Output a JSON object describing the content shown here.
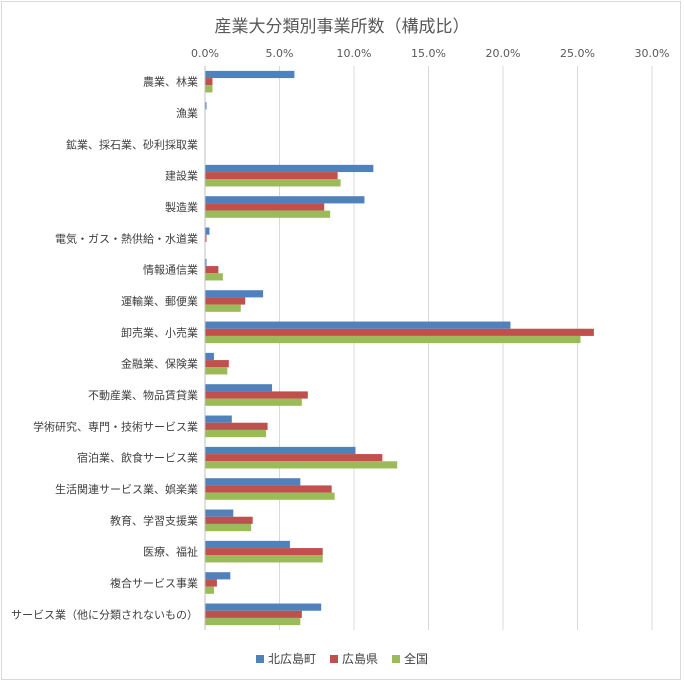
{
  "chart_data": {
    "type": "bar",
    "orientation": "horizontal",
    "title": "産業大分類別事業所数（構成比）",
    "categories": [
      "農業、林業",
      "漁業",
      "鉱業、採石業、砂利採取業",
      "建設業",
      "製造業",
      "電気・ガス・熱供給・水道業",
      "情報通信業",
      "運輸業、郵便業",
      "卸売業、小売業",
      "金融業、保険業",
      "不動産業、物品賃貸業",
      "学術研究、専門・技術サービス業",
      "宿泊業、飲食サービス業",
      "生活関連サービス業、娯楽業",
      "教育、学習支援業",
      "医療、福祉",
      "複合サービス事業",
      "サービス業（他に分類されないもの）"
    ],
    "series": [
      {
        "name": "北広島町",
        "color": "#4f81bd",
        "values": [
          6.0,
          0.1,
          0.0,
          11.3,
          10.7,
          0.3,
          0.1,
          3.9,
          20.5,
          0.6,
          4.5,
          1.8,
          10.1,
          6.4,
          1.9,
          5.7,
          1.7,
          7.8
        ]
      },
      {
        "name": "広島県",
        "color": "#c0504d",
        "values": [
          0.5,
          0.0,
          0.0,
          8.9,
          8.0,
          0.1,
          0.9,
          2.7,
          26.1,
          1.6,
          6.9,
          4.2,
          11.9,
          8.5,
          3.2,
          7.9,
          0.8,
          6.5
        ]
      },
      {
        "name": "全国",
        "color": "#9bbb59",
        "values": [
          0.5,
          0.0,
          0.0,
          9.1,
          8.4,
          0.0,
          1.2,
          2.4,
          25.2,
          1.5,
          6.5,
          4.1,
          12.9,
          8.7,
          3.1,
          7.9,
          0.6,
          6.4
        ]
      }
    ],
    "xlim": [
      0,
      30
    ],
    "xticks": [
      "0.0%",
      "5.0%",
      "10.0%",
      "15.0%",
      "20.0%",
      "25.0%",
      "30.0%"
    ],
    "xtick_values": [
      0,
      5,
      10,
      15,
      20,
      25,
      30
    ],
    "grid": true,
    "legend_position": "bottom",
    "xlabel": "",
    "ylabel": ""
  }
}
